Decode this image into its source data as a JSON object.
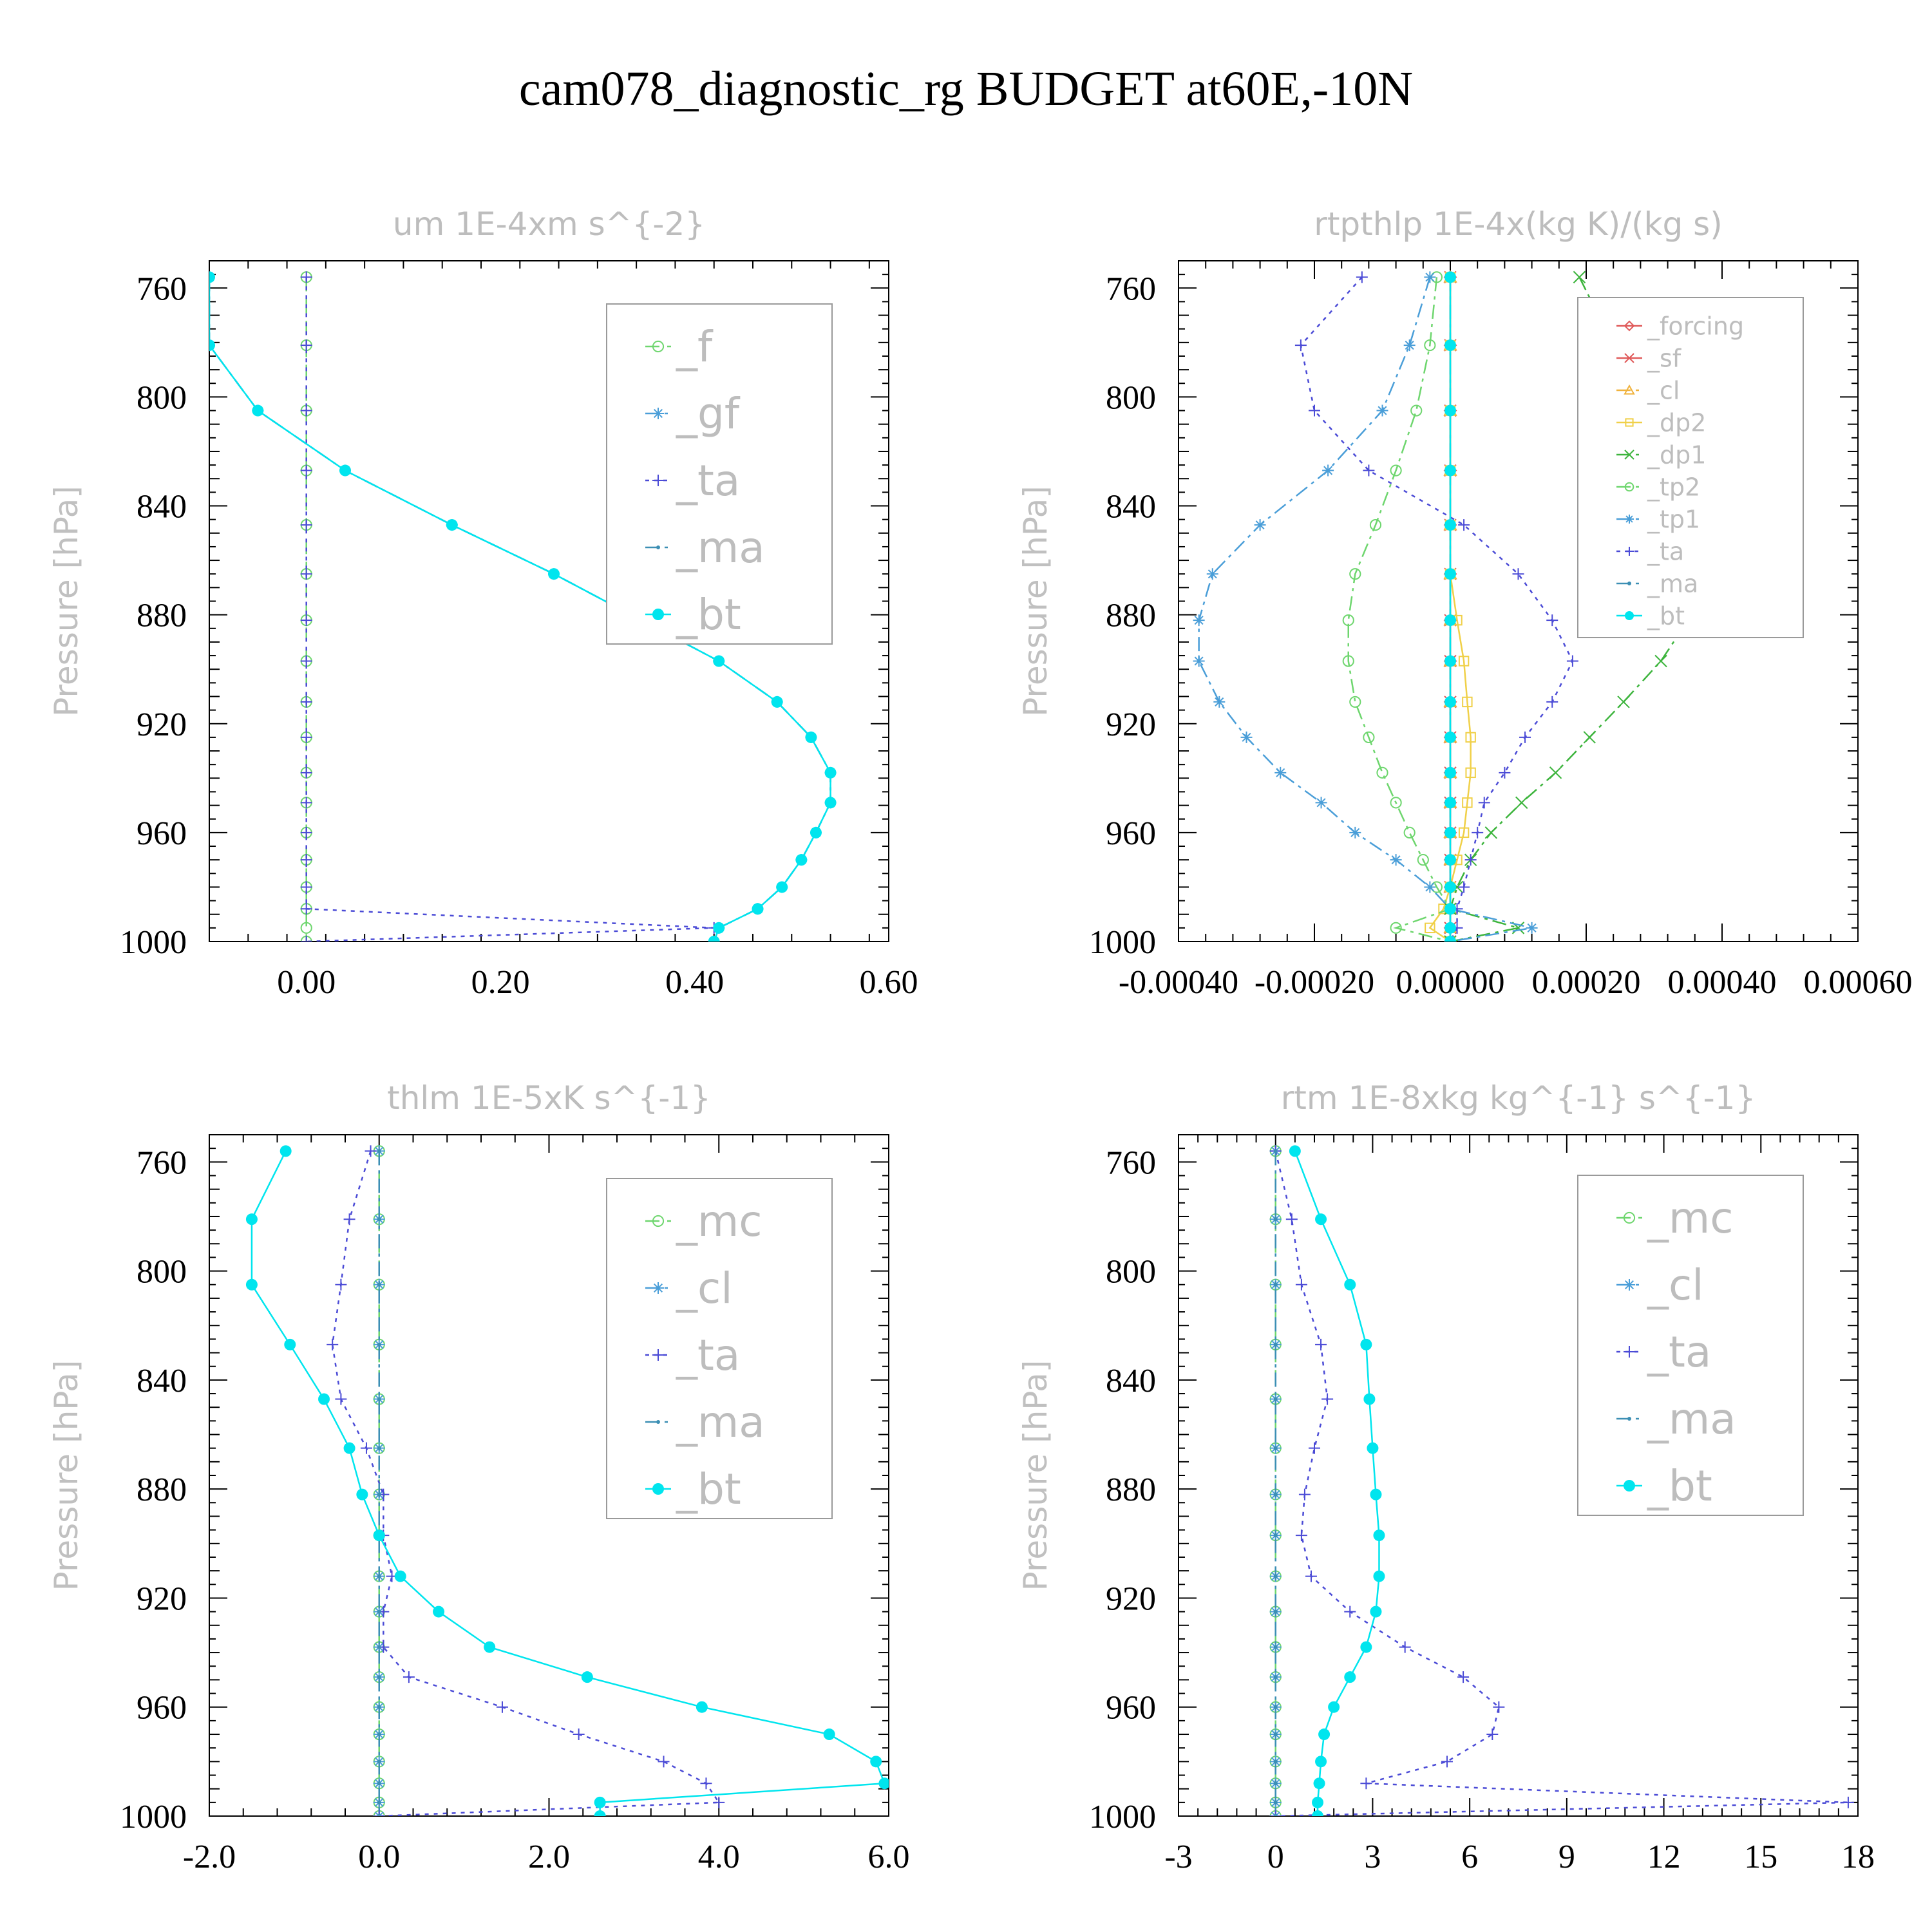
{
  "title": "cam078_diagnostic_rg  BUDGET at60E,-10N",
  "pressure_levels": [
    756,
    781,
    805,
    827,
    847,
    865,
    882,
    897,
    912,
    925,
    938,
    949,
    960,
    970,
    980,
    988,
    995,
    1000
  ],
  "series_styles": {
    "_f": {
      "color": "#6ed66e",
      "marker": "circle",
      "dash": "dash"
    },
    "_gf": {
      "color": "#4a9ed8",
      "marker": "asterisk",
      "dash": "dashdot"
    },
    "_ta": {
      "color": "#4b4bd6",
      "marker": "plus",
      "dash": "dot"
    },
    "_ma": {
      "color": "#3c8fb4",
      "marker": "dot",
      "dash": "dashdot"
    },
    "_bt": {
      "color": "#00e5ee",
      "marker": "filled-circle",
      "dash": "solid"
    },
    "_forcing": {
      "color": "#e05a5a",
      "marker": "diamond",
      "dash": "solid"
    },
    "_sf": {
      "color": "#e05a5a",
      "marker": "cross",
      "dash": "solid"
    },
    "_cl": {
      "color": "#f0b23c",
      "marker": "triangle",
      "dash": "dashdot"
    },
    "_dp2": {
      "color": "#f0d048",
      "marker": "square",
      "dash": "solid"
    },
    "_dp1": {
      "color": "#3cb43c",
      "marker": "cross",
      "dash": "dashdot"
    },
    "_tp2": {
      "color": "#6ed66e",
      "marker": "circle",
      "dash": "dashdot"
    },
    "_tp1": {
      "color": "#4a9ed8",
      "marker": "asterisk",
      "dash": "dashdot"
    },
    "_mc": {
      "color": "#6ed66e",
      "marker": "circle",
      "dash": "dash"
    },
    "_cl_b": {
      "color": "#4a9ed8",
      "marker": "asterisk",
      "dash": "dashdot"
    }
  },
  "chart_data": [
    {
      "type": "line",
      "title": "um  1E-4xm s^{-2}",
      "ylabel": "Pressure [hPa]",
      "xlim": [
        -0.1,
        0.6
      ],
      "ylim": [
        750,
        1000
      ],
      "y_inverted": true,
      "xticks": [
        0.0,
        0.2,
        0.4,
        0.6
      ],
      "xtick_labels": [
        "0.00",
        "0.20",
        "0.40",
        "0.60"
      ],
      "yticks": [
        760,
        800,
        840,
        880,
        920,
        960,
        1000
      ],
      "legend": [
        "_f",
        "_gf",
        "_ta",
        "_ma",
        "_bt"
      ],
      "series": [
        {
          "name": "_f",
          "style": "_f",
          "x": [
            0,
            0,
            0,
            0,
            0,
            0,
            0,
            0,
            0,
            0,
            0,
            0,
            0,
            0,
            0,
            0,
            0,
            0
          ]
        },
        {
          "name": "_gf",
          "style": "_gf",
          "x": [
            -0.1,
            -0.1,
            -0.05,
            0.04,
            0.15,
            0.255,
            0.345,
            0.425,
            0.485,
            0.52,
            0.54,
            0.54,
            0.525,
            0.51,
            0.49,
            0.465,
            0.425,
            0.42
          ]
        },
        {
          "name": "_ta",
          "style": "_ta",
          "x": [
            0,
            0,
            0,
            0,
            0,
            0,
            0,
            0,
            0,
            0,
            0,
            0,
            0,
            0,
            0,
            0,
            0.42,
            0
          ]
        },
        {
          "name": "_ma",
          "style": "_ma",
          "x": [
            -0.1,
            -0.1,
            -0.05,
            0.04,
            0.15,
            0.255,
            0.345,
            0.425,
            0.485,
            0.52,
            0.54,
            0.54,
            0.525,
            0.51,
            0.49,
            0.465,
            0.425,
            0.42
          ]
        },
        {
          "name": "_bt",
          "style": "_bt",
          "x": [
            -0.1,
            -0.1,
            -0.05,
            0.04,
            0.15,
            0.255,
            0.345,
            0.425,
            0.485,
            0.52,
            0.54,
            0.54,
            0.525,
            0.51,
            0.49,
            0.465,
            0.425,
            0.42
          ]
        }
      ]
    },
    {
      "type": "line",
      "title": "rtpthlp  1E-4x(kg K)/(kg s)",
      "ylabel": "Pressure [hPa]",
      "xlim": [
        -0.0004,
        0.0006
      ],
      "ylim": [
        750,
        1000
      ],
      "y_inverted": true,
      "xticks": [
        -0.0004,
        -0.0002,
        0.0,
        0.0002,
        0.0004,
        0.0006
      ],
      "xtick_labels": [
        "-0.00040",
        "-0.00020",
        "0.00000",
        "0.00020",
        "0.00040",
        "0.00060"
      ],
      "yticks": [
        760,
        800,
        840,
        880,
        920,
        960,
        1000
      ],
      "legend": [
        "_forcing",
        "_sf",
        "_cl",
        "_dp2",
        "_dp1",
        "_tp2",
        "_tp1",
        "_ta",
        "_ma",
        "_bt"
      ],
      "series": [
        {
          "name": "_forcing",
          "style": "_forcing",
          "x": [
            0,
            0,
            0,
            0,
            0,
            0,
            0,
            0,
            0,
            0,
            0,
            0,
            0,
            0,
            0,
            0,
            0,
            0
          ]
        },
        {
          "name": "_sf",
          "style": "_sf",
          "x": [
            0,
            0,
            0,
            0,
            0,
            0,
            0,
            0,
            0,
            0,
            0,
            0,
            0,
            0,
            0,
            0,
            0,
            0
          ]
        },
        {
          "name": "_cl",
          "style": "_cl",
          "x": [
            0,
            0,
            0,
            0,
            0,
            0,
            0,
            0,
            0,
            0,
            0,
            0,
            0,
            0,
            0,
            0,
            0,
            0
          ]
        },
        {
          "name": "_dp2",
          "style": "_dp2",
          "x": [
            0,
            0,
            0,
            0,
            0,
            0,
            1e-05,
            2e-05,
            2.5e-05,
            3e-05,
            3e-05,
            2.5e-05,
            2e-05,
            1e-05,
            0,
            -1e-05,
            -3e-05,
            0
          ]
        },
        {
          "name": "_dp1",
          "style": "_dp1",
          "x": [
            0.00019,
            0.00024,
            0.00029,
            0.00035,
            0.000385,
            0.00038,
            0.00035,
            0.00031,
            0.000255,
            0.000205,
            0.000155,
            0.000105,
            6e-05,
            3e-05,
            1e-05,
            0,
            0.0001,
            0
          ]
        },
        {
          "name": "_tp2",
          "style": "_tp2",
          "x": [
            -2e-05,
            -3e-05,
            -5e-05,
            -8e-05,
            -0.00011,
            -0.00014,
            -0.00015,
            -0.00015,
            -0.00014,
            -0.00012,
            -0.0001,
            -8e-05,
            -6e-05,
            -4e-05,
            -2e-05,
            0,
            -8e-05,
            0
          ]
        },
        {
          "name": "_tp1",
          "style": "_tp1",
          "x": [
            -3e-05,
            -6e-05,
            -0.0001,
            -0.00018,
            -0.00028,
            -0.00035,
            -0.00037,
            -0.00037,
            -0.00034,
            -0.0003,
            -0.00025,
            -0.00019,
            -0.00014,
            -8e-05,
            -3e-05,
            0,
            0.00012,
            0
          ]
        },
        {
          "name": "_ta",
          "style": "_ta",
          "x": [
            -0.00013,
            -0.00022,
            -0.0002,
            -0.00012,
            2e-05,
            0.0001,
            0.00015,
            0.00018,
            0.00015,
            0.00011,
            8e-05,
            5e-05,
            4e-05,
            3e-05,
            2e-05,
            1e-05,
            1e-05,
            0
          ]
        },
        {
          "name": "_ma",
          "style": "_ma",
          "x": [
            0,
            0,
            0,
            0,
            0,
            0,
            0,
            0,
            0,
            0,
            0,
            0,
            0,
            0,
            0,
            0,
            0,
            0
          ]
        },
        {
          "name": "_bt",
          "style": "_bt",
          "x": [
            0,
            0,
            0,
            0,
            0,
            0,
            0,
            0,
            0,
            0,
            0,
            0,
            0,
            0,
            0,
            0,
            0,
            0
          ]
        }
      ]
    },
    {
      "type": "line",
      "title": "thlm  1E-5xK s^{-1}",
      "ylabel": "Pressure [hPa]",
      "xlim": [
        -2.0,
        6.0
      ],
      "ylim": [
        750,
        1000
      ],
      "y_inverted": true,
      "xticks": [
        -2.0,
        0.0,
        2.0,
        4.0,
        6.0
      ],
      "xtick_labels": [
        "-2.0",
        "0.0",
        "2.0",
        "4.0",
        "6.0"
      ],
      "yticks": [
        760,
        800,
        840,
        880,
        920,
        960,
        1000
      ],
      "legend": [
        "_mc",
        "_cl",
        "_ta",
        "_ma",
        "_bt"
      ],
      "series": [
        {
          "name": "_mc",
          "style": "_mc",
          "x": [
            0,
            0,
            0,
            0,
            0,
            0,
            0,
            0,
            0,
            0,
            0,
            0,
            0,
            0,
            0,
            0,
            0,
            0
          ]
        },
        {
          "name": "_cl",
          "style": "_cl_b",
          "x": [
            0,
            0,
            0,
            0,
            0,
            0,
            0,
            0,
            0,
            0,
            0,
            0,
            0,
            0,
            0,
            0,
            0,
            0
          ]
        },
        {
          "name": "_ta",
          "style": "_ta",
          "x": [
            -0.1,
            -0.35,
            -0.45,
            -0.55,
            -0.45,
            -0.15,
            0.05,
            0.05,
            0.15,
            0.05,
            0.05,
            0.35,
            1.45,
            2.35,
            3.35,
            3.85,
            4.0,
            0
          ]
        },
        {
          "name": "_ma",
          "style": "_ma",
          "x": [
            0,
            0,
            0,
            0,
            0,
            0,
            0,
            0,
            0,
            0,
            0,
            0,
            0,
            0,
            0,
            0,
            0,
            0
          ]
        },
        {
          "name": "_bt",
          "style": "_bt",
          "x": [
            -1.1,
            -1.5,
            -1.5,
            -1.05,
            -0.65,
            -0.35,
            -0.2,
            0.0,
            0.25,
            0.7,
            1.3,
            2.45,
            3.8,
            5.3,
            5.85,
            5.95,
            2.6,
            2.6
          ]
        }
      ]
    },
    {
      "type": "line",
      "title": "rtm  1E-8xkg kg^{-1} s^{-1}",
      "ylabel": "Pressure [hPa]",
      "xlim": [
        -3,
        18
      ],
      "ylim": [
        750,
        1000
      ],
      "y_inverted": true,
      "xticks": [
        -3,
        0,
        3,
        6,
        9,
        12,
        15,
        18
      ],
      "xtick_labels": [
        "-3",
        "0",
        "3",
        "6",
        "9",
        "12",
        "15",
        "18"
      ],
      "yticks": [
        760,
        800,
        840,
        880,
        920,
        960,
        1000
      ],
      "legend": [
        "_mc",
        "_cl",
        "_ta",
        "_ma",
        "_bt"
      ],
      "series": [
        {
          "name": "_mc",
          "style": "_mc",
          "x": [
            0,
            0,
            0,
            0,
            0,
            0,
            0,
            0,
            0,
            0,
            0,
            0,
            0,
            0,
            0,
            0,
            0,
            0
          ]
        },
        {
          "name": "_cl",
          "style": "_cl_b",
          "x": [
            0,
            0,
            0,
            0,
            0,
            0,
            0,
            0,
            0,
            0,
            0,
            0,
            0,
            0,
            0,
            0,
            0,
            0
          ]
        },
        {
          "name": "_ta",
          "style": "_ta",
          "x": [
            0,
            0.5,
            0.8,
            1.4,
            1.6,
            1.2,
            0.9,
            0.8,
            1.1,
            2.3,
            4.0,
            5.8,
            6.9,
            6.7,
            5.3,
            2.8,
            17.7,
            0
          ]
        },
        {
          "name": "_ma",
          "style": "_ma",
          "x": [
            0,
            0,
            0,
            0,
            0,
            0,
            0,
            0,
            0,
            0,
            0,
            0,
            0,
            0,
            0,
            0,
            0,
            0
          ]
        },
        {
          "name": "_bt",
          "style": "_bt",
          "x": [
            0.6,
            1.4,
            2.3,
            2.8,
            2.9,
            3.0,
            3.1,
            3.2,
            3.2,
            3.1,
            2.8,
            2.3,
            1.8,
            1.5,
            1.4,
            1.35,
            1.3,
            1.3
          ]
        }
      ]
    }
  ]
}
